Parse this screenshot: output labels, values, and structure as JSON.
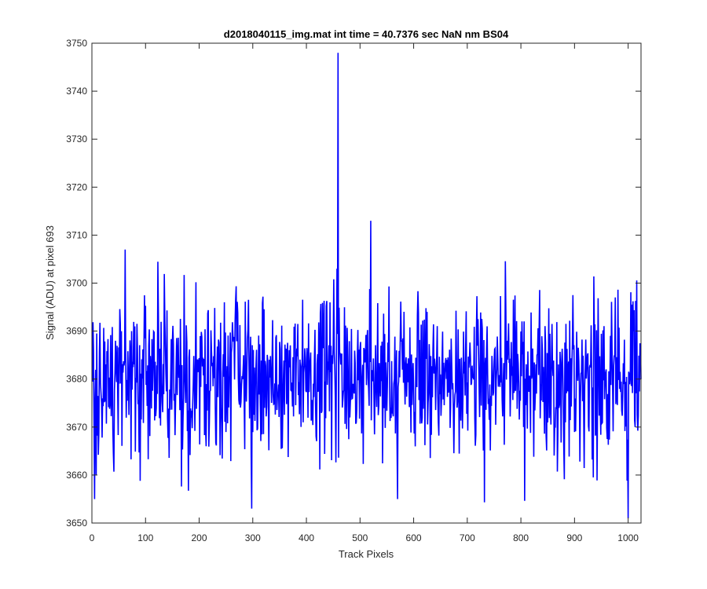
{
  "chart_data": {
    "type": "line",
    "title": "d2018040115_img.mat int time = 40.7376 sec  NaN nm BS04",
    "xlabel": "Track Pixels",
    "ylabel": "Signal (ADU) at pixel 693",
    "xlim": [
      0,
      1024
    ],
    "ylim": [
      3650,
      3750
    ],
    "xticks": [
      0,
      100,
      200,
      300,
      400,
      500,
      600,
      700,
      800,
      900,
      1000
    ],
    "yticks": [
      3650,
      3660,
      3670,
      3680,
      3690,
      3700,
      3710,
      3720,
      3730,
      3740,
      3750
    ],
    "grid": false,
    "legend": "none",
    "series": [
      {
        "color": "#0000ff",
        "x": [
          1,
          1024
        ],
        "baseline": 3680.5,
        "noise_range": [
          3651,
          3748
        ],
        "peak": {
          "x": 459,
          "y": 3748
        },
        "notable_points": [
          {
            "x": 520,
            "y": 3713
          },
          {
            "x": 457,
            "y": 3703
          },
          {
            "x": 62,
            "y": 3707
          },
          {
            "x": 570,
            "y": 3655
          },
          {
            "x": 1000,
            "y": 3651
          },
          {
            "x": 5,
            "y": 3655
          }
        ]
      }
    ]
  }
}
